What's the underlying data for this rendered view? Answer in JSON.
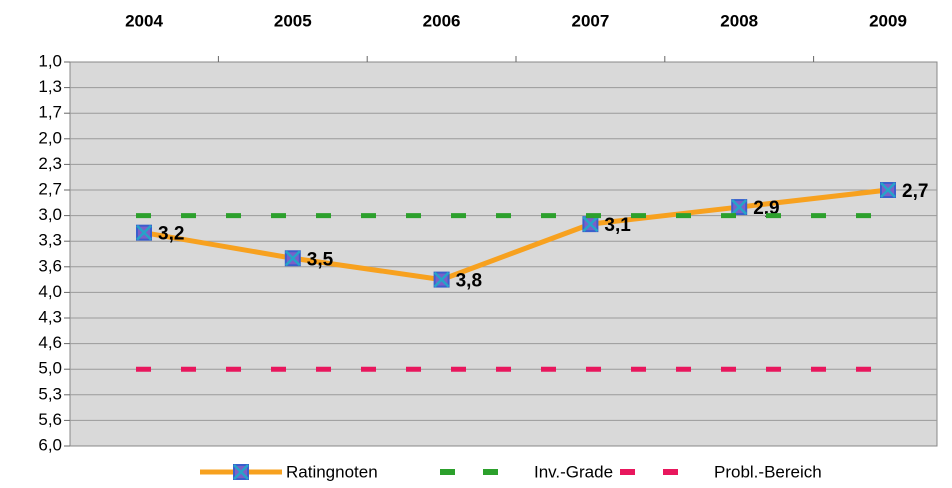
{
  "chart_data": {
    "type": "line",
    "categories": [
      "2004",
      "2005",
      "2006",
      "2007",
      "2008",
      "2009"
    ],
    "series": [
      {
        "name": "Ratingnoten",
        "color": "#f7a11f",
        "values": [
          3.2,
          3.5,
          3.8,
          3.1,
          2.9,
          2.7
        ],
        "value_labels": [
          "3,2",
          "3,5",
          "3,8",
          "3,1",
          "2,9",
          "2,7"
        ],
        "marker": true
      },
      {
        "name": "Inv.-Grade",
        "color": "#2ca02c",
        "values": [
          3,
          3,
          3,
          3,
          3,
          3
        ],
        "dashed": true
      },
      {
        "name": "Probl.-Bereich",
        "color": "#e8175d",
        "values": [
          5,
          5,
          5,
          5,
          5,
          5
        ],
        "dashed": true
      }
    ],
    "ylim": [
      1,
      6
    ],
    "y_inverted": true,
    "yticks": [
      {
        "value": 1,
        "label": "1,0"
      },
      {
        "value": 1.3,
        "label": "1,3"
      },
      {
        "value": 1.7,
        "label": "1,7"
      },
      {
        "value": 2,
        "label": "2,0"
      },
      {
        "value": 2.3,
        "label": "2,3"
      },
      {
        "value": 2.7,
        "label": "2,7"
      },
      {
        "value": 3,
        "label": "3,0"
      },
      {
        "value": 3.3,
        "label": "3,3"
      },
      {
        "value": 3.6,
        "label": "3,6"
      },
      {
        "value": 4,
        "label": "4,0"
      },
      {
        "value": 4.3,
        "label": "4,3"
      },
      {
        "value": 4.6,
        "label": "4,6"
      },
      {
        "value": 5,
        "label": "5,0"
      },
      {
        "value": 5.3,
        "label": "5,3"
      },
      {
        "value": 5.6,
        "label": "5,6"
      },
      {
        "value": 6,
        "label": "6,0"
      }
    ],
    "grid": true,
    "legend": "bottom"
  }
}
